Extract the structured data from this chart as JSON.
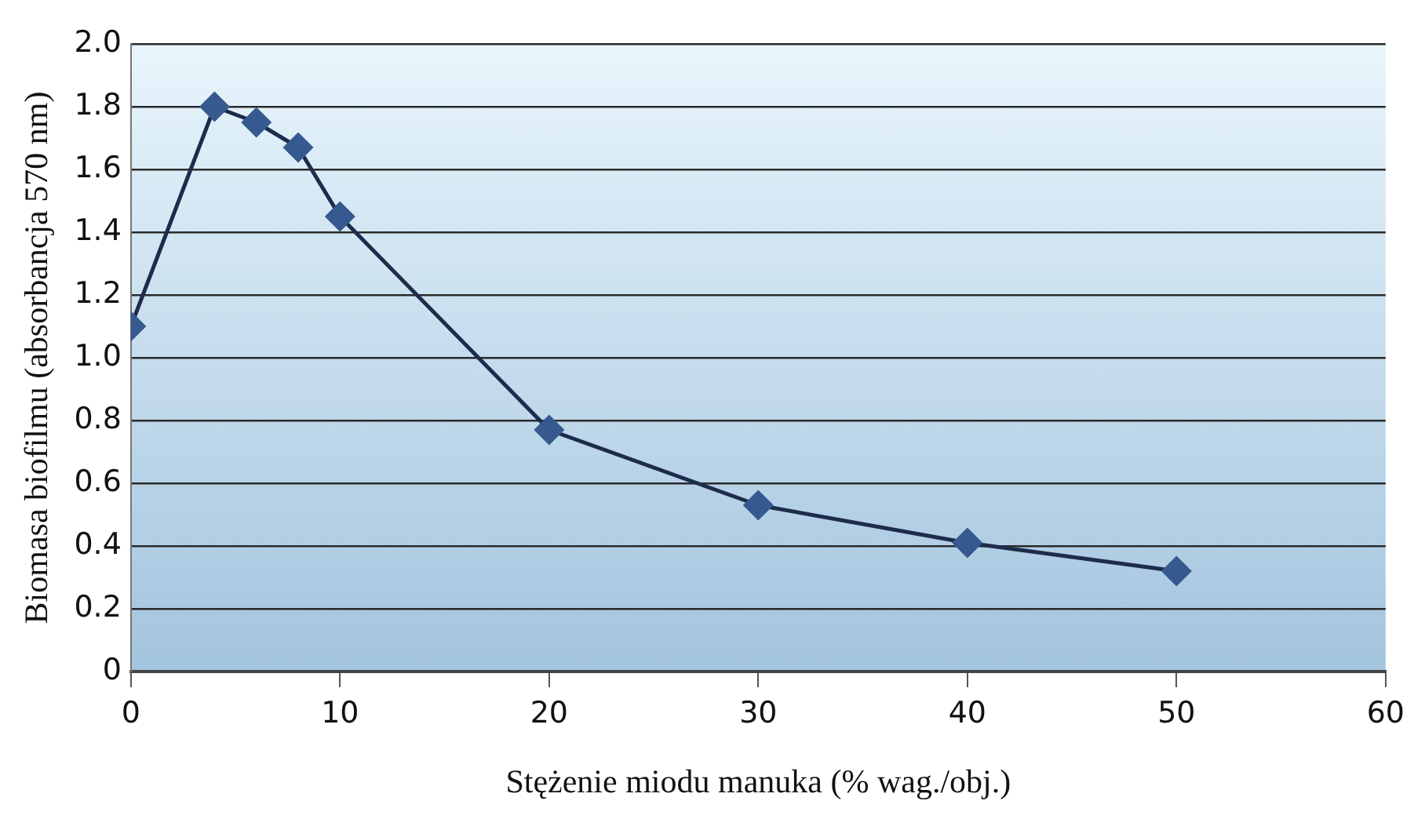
{
  "chart_data": {
    "type": "line",
    "xlabel": "Stężenie miodu manuka (% wag./obj.)",
    "ylabel": "Biomasa biofilmu (absorbancja 570 nm)",
    "x": [
      0,
      4,
      6,
      8,
      10,
      20,
      30,
      40,
      50
    ],
    "series": [
      {
        "color": "#365a8f",
        "values": [
          1.1,
          1.8,
          1.75,
          1.67,
          1.45,
          0.77,
          0.53,
          0.41,
          0.32
        ]
      }
    ],
    "xlim": [
      0,
      60
    ],
    "xticks": [
      0,
      10,
      20,
      30,
      40,
      50,
      60
    ],
    "ylim": [
      0,
      2
    ],
    "yticks": [
      0,
      0.2,
      0.4,
      0.6,
      0.8,
      {
        "value": 1,
        "label": "1.0"
      },
      1.2,
      1.4,
      1.6,
      1.8,
      {
        "value": 2,
        "label": "2.0"
      }
    ],
    "grid": "y",
    "legend": false,
    "marker": "diamond",
    "line_style": "solid"
  }
}
